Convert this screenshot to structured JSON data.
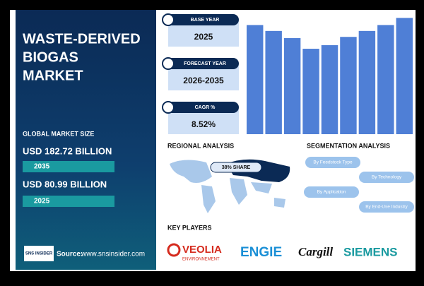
{
  "header": {
    "title": "WASTE-DERIVED BIOGAS MARKET"
  },
  "market_size": {
    "label": "GLOBAL MARKET SIZE",
    "forecast_value": "USD 182.72 BILLION",
    "forecast_year": "2035",
    "base_value": "USD 80.99 BILLION",
    "base_year": "2025"
  },
  "source": {
    "logo": "SNS INSIDER",
    "label": "Source:",
    "url": "www.snsinsider.com"
  },
  "cards": [
    {
      "title": "BASE YEAR",
      "value": "2025"
    },
    {
      "title": "FORECAST YEAR",
      "value": "2026-2035"
    },
    {
      "title": "CAGR %",
      "value": "8.52%"
    }
  ],
  "chart_data": {
    "type": "bar",
    "values": [
      92,
      87,
      81,
      72,
      75,
      82,
      87,
      92,
      98
    ],
    "color": "#4f7fd6",
    "ylim": [
      0,
      100
    ]
  },
  "regional": {
    "title": "REGIONAL ANALYSIS",
    "callout": "38% SHARE"
  },
  "segmentation": {
    "title": "SEGMENTATION ANALYSIS",
    "items": [
      "By Feedstock Type",
      "By Technology",
      "By Application",
      "By End-Use Industry"
    ]
  },
  "key_players": {
    "title": "KEY PLAYERS",
    "companies": [
      "VEOLIA",
      "ENVIRONNEMENT",
      "ENGIE",
      "Cargill",
      "SIEMENS"
    ]
  }
}
